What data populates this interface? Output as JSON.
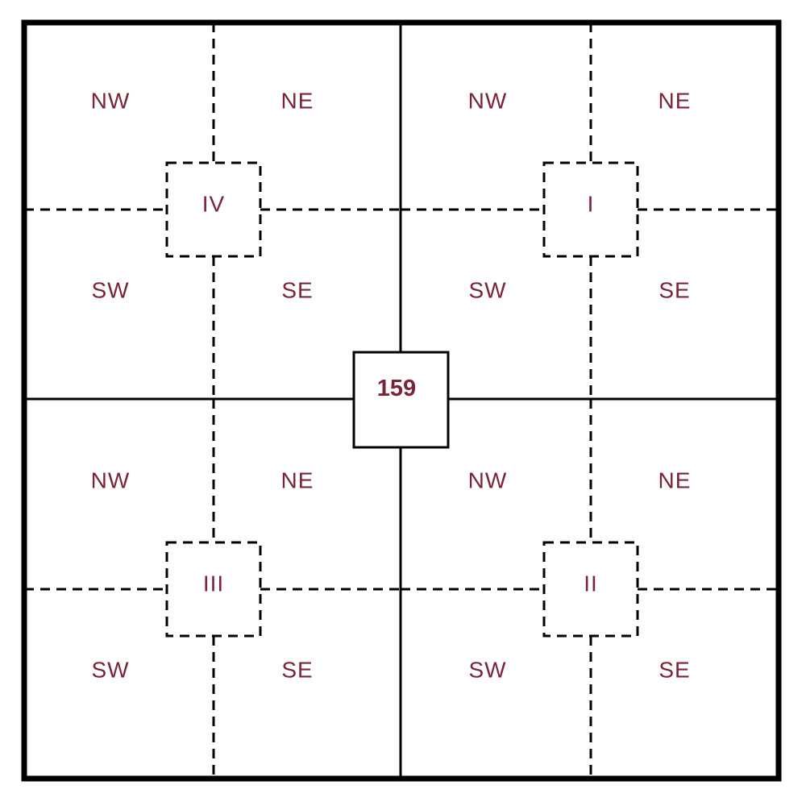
{
  "center_label": "159",
  "colors": {
    "label": "#7b2438",
    "line": "#000000",
    "background": "#ffffff"
  },
  "quadrants": [
    {
      "id": "nw",
      "numeral": "IV",
      "cells": {
        "nw": "NW",
        "ne": "NE",
        "sw": "SW",
        "se": "SE"
      }
    },
    {
      "id": "ne",
      "numeral": "I",
      "cells": {
        "nw": "NW",
        "ne": "NE",
        "sw": "SW",
        "se": "SE"
      }
    },
    {
      "id": "sw",
      "numeral": "III",
      "cells": {
        "nw": "NW",
        "ne": "NE",
        "sw": "SW",
        "se": "SE"
      }
    },
    {
      "id": "se",
      "numeral": "II",
      "cells": {
        "nw": "NW",
        "ne": "NE",
        "sw": "SW",
        "se": "SE"
      }
    }
  ]
}
